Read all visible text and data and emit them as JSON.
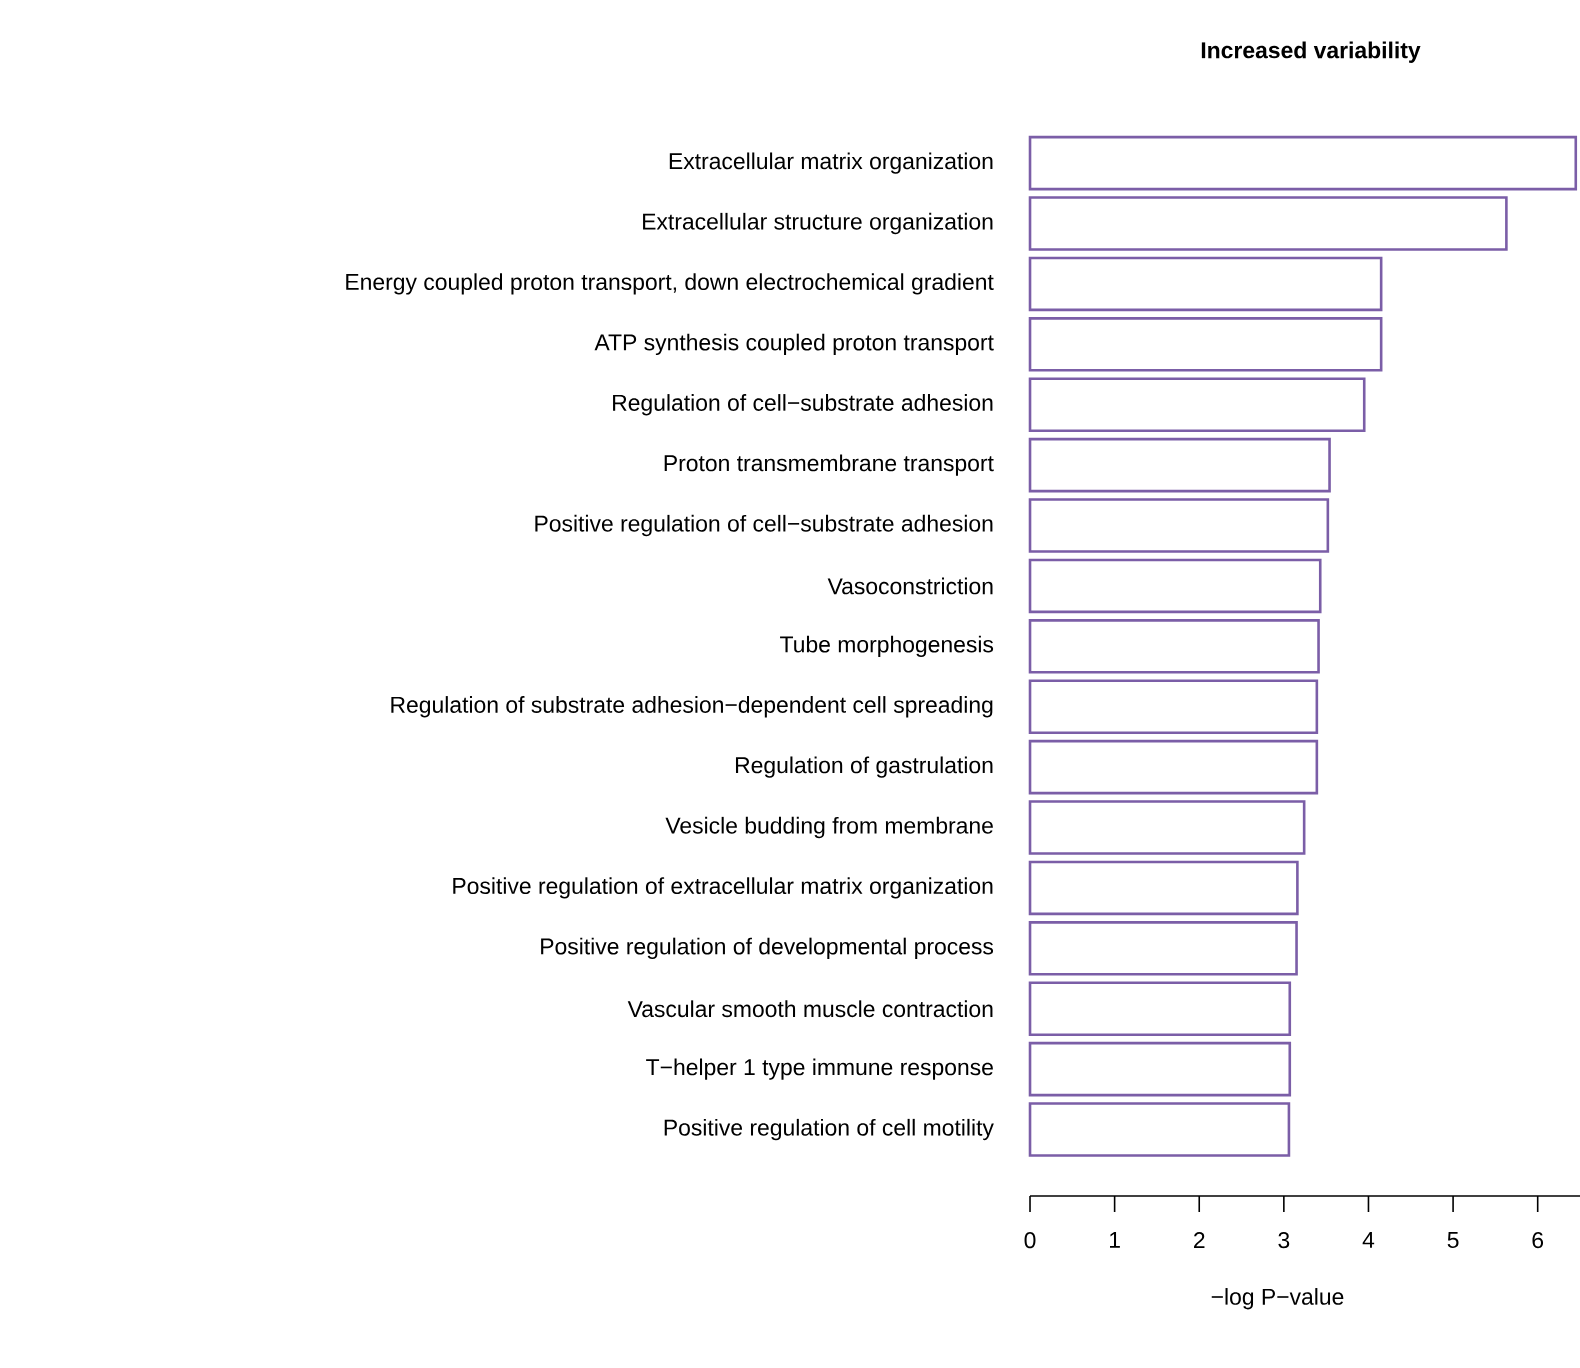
{
  "chart_data": {
    "type": "bar",
    "orientation": "horizontal",
    "title": "Increased variability",
    "xlabel": "−log P−value",
    "categories": [
      "Extracellular matrix organization",
      "Extracellular structure organization",
      "Energy coupled proton transport, down electrochemical gradient",
      "ATP synthesis coupled proton transport",
      "Regulation of cell−substrate adhesion",
      "Proton transmembrane transport",
      "Positive regulation of cell−substrate adhesion",
      "Vasoconstriction",
      "Tube morphogenesis",
      "Regulation of substrate adhesion−dependent cell spreading",
      "Regulation of gastrulation",
      "Vesicle budding from membrane",
      "Positive regulation of extracellular matrix organization",
      "Positive regulation of developmental process",
      "Vascular smooth muscle contraction",
      "T−helper 1 type immune response",
      "Positive regulation of cell motility"
    ],
    "values": [
      6.45,
      5.63,
      4.15,
      4.15,
      3.95,
      3.54,
      3.52,
      3.43,
      3.41,
      3.39,
      3.39,
      3.24,
      3.16,
      3.15,
      3.07,
      3.07,
      3.06
    ],
    "color": "#7b5ea7",
    "xlim": [
      0,
      6.5
    ],
    "xticks": [
      0,
      1,
      2,
      3,
      4,
      5,
      6
    ],
    "grid": false
  }
}
